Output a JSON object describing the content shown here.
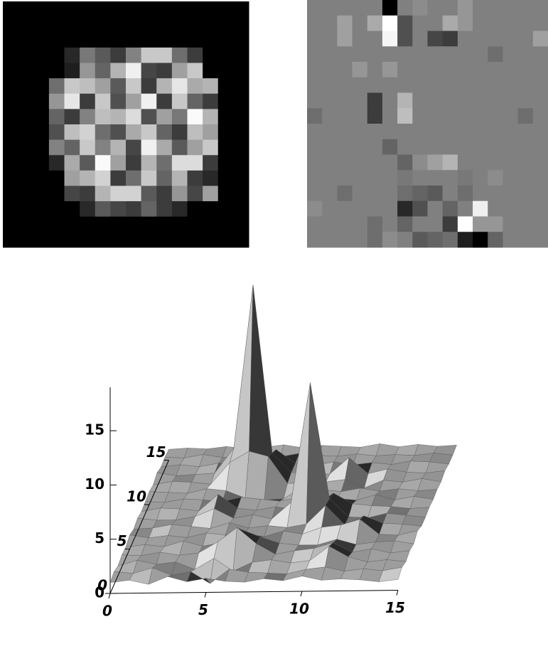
{
  "chart_data": [
    {
      "type": "heatmap",
      "colormap": "gray",
      "vlim": [
        0,
        255
      ],
      "values": [
        [
          0,
          0,
          0,
          0,
          0,
          0,
          0,
          0,
          0,
          0,
          0,
          0,
          0,
          0,
          0,
          0
        ],
        [
          0,
          0,
          0,
          0,
          0,
          0,
          0,
          0,
          0,
          0,
          0,
          0,
          0,
          0,
          0,
          0
        ],
        [
          0,
          0,
          0,
          0,
          0,
          0,
          0,
          0,
          0,
          0,
          0,
          0,
          0,
          0,
          0,
          0
        ],
        [
          0,
          0,
          0,
          0,
          40,
          120,
          90,
          60,
          130,
          200,
          200,
          110,
          60,
          0,
          0,
          0
        ],
        [
          0,
          0,
          0,
          0,
          30,
          150,
          100,
          180,
          240,
          70,
          60,
          160,
          200,
          0,
          0,
          0
        ],
        [
          0,
          0,
          0,
          110,
          200,
          190,
          160,
          90,
          200,
          60,
          180,
          230,
          170,
          180,
          0,
          0
        ],
        [
          0,
          0,
          0,
          150,
          230,
          60,
          200,
          80,
          160,
          240,
          60,
          200,
          100,
          60,
          0,
          0
        ],
        [
          0,
          0,
          0,
          100,
          60,
          130,
          190,
          180,
          220,
          80,
          160,
          120,
          250,
          180,
          0,
          0
        ],
        [
          0,
          0,
          0,
          80,
          190,
          210,
          110,
          80,
          170,
          200,
          100,
          60,
          190,
          160,
          0,
          0
        ],
        [
          0,
          0,
          0,
          130,
          100,
          200,
          130,
          180,
          70,
          240,
          170,
          90,
          160,
          200,
          0,
          0
        ],
        [
          0,
          0,
          0,
          40,
          170,
          90,
          250,
          160,
          60,
          180,
          110,
          220,
          220,
          60,
          0,
          0
        ],
        [
          0,
          0,
          0,
          0,
          160,
          180,
          210,
          60,
          110,
          200,
          100,
          180,
          60,
          40,
          0,
          0
        ],
        [
          0,
          0,
          0,
          0,
          70,
          60,
          180,
          210,
          210,
          90,
          60,
          150,
          70,
          160,
          0,
          0
        ],
        [
          0,
          0,
          0,
          0,
          0,
          40,
          90,
          70,
          60,
          100,
          60,
          40,
          0,
          0,
          0,
          0
        ],
        [
          0,
          0,
          0,
          0,
          0,
          0,
          0,
          0,
          0,
          0,
          0,
          0,
          0,
          0,
          0,
          0
        ],
        [
          0,
          0,
          0,
          0,
          0,
          0,
          0,
          0,
          0,
          0,
          0,
          0,
          0,
          0,
          0,
          0
        ]
      ]
    },
    {
      "type": "heatmap",
      "colormap": "gray",
      "vlim": [
        0,
        255
      ],
      "values": [
        [
          128,
          128,
          128,
          128,
          128,
          0,
          128,
          140,
          128,
          128,
          150,
          128,
          128,
          128,
          128,
          128
        ],
        [
          128,
          128,
          160,
          128,
          170,
          255,
          80,
          128,
          128,
          170,
          150,
          128,
          128,
          128,
          128,
          128
        ],
        [
          128,
          128,
          160,
          128,
          128,
          245,
          80,
          128,
          70,
          60,
          128,
          128,
          128,
          128,
          128,
          160
        ],
        [
          128,
          128,
          128,
          128,
          128,
          128,
          128,
          128,
          128,
          128,
          128,
          128,
          110,
          128,
          128,
          128
        ],
        [
          128,
          128,
          128,
          150,
          128,
          150,
          128,
          128,
          128,
          128,
          128,
          128,
          128,
          128,
          128,
          128
        ],
        [
          128,
          128,
          128,
          128,
          128,
          128,
          128,
          128,
          128,
          128,
          128,
          128,
          128,
          128,
          128,
          128
        ],
        [
          128,
          128,
          128,
          128,
          60,
          128,
          180,
          128,
          128,
          128,
          128,
          128,
          128,
          128,
          128,
          128
        ],
        [
          110,
          128,
          128,
          128,
          60,
          128,
          190,
          128,
          128,
          128,
          128,
          128,
          128,
          128,
          110,
          128
        ],
        [
          128,
          128,
          128,
          128,
          128,
          128,
          128,
          128,
          128,
          128,
          128,
          128,
          128,
          128,
          128,
          128
        ],
        [
          128,
          128,
          128,
          128,
          128,
          100,
          128,
          128,
          128,
          128,
          128,
          128,
          128,
          128,
          128,
          128
        ],
        [
          128,
          128,
          128,
          128,
          128,
          128,
          100,
          140,
          160,
          180,
          128,
          128,
          128,
          128,
          128,
          128
        ],
        [
          128,
          128,
          128,
          128,
          128,
          128,
          120,
          128,
          128,
          128,
          120,
          128,
          140,
          128,
          128,
          128
        ],
        [
          128,
          128,
          110,
          128,
          128,
          128,
          110,
          100,
          90,
          128,
          110,
          128,
          128,
          128,
          128,
          128
        ],
        [
          140,
          128,
          128,
          128,
          128,
          128,
          40,
          80,
          128,
          100,
          128,
          240,
          128,
          128,
          128,
          128
        ],
        [
          128,
          128,
          128,
          128,
          110,
          128,
          100,
          128,
          128,
          60,
          255,
          150,
          150,
          128,
          128,
          128
        ],
        [
          128,
          128,
          128,
          128,
          110,
          140,
          128,
          90,
          100,
          110,
          30,
          0,
          100,
          128,
          128,
          128
        ]
      ]
    },
    {
      "type": "surface",
      "xlim": [
        0,
        15
      ],
      "ylim": [
        0,
        15
      ],
      "zlim": [
        0,
        19
      ],
      "xticks": [
        0,
        5,
        10,
        15
      ],
      "yticks": [
        0,
        5,
        10,
        15
      ],
      "zticks": [
        0,
        5,
        10,
        15
      ],
      "z": [
        [
          1,
          1.2,
          0.8,
          1.5,
          1,
          1.3,
          1,
          0.9,
          1.2,
          1,
          1.4,
          1,
          1.1,
          1,
          0.8,
          1
        ],
        [
          1.2,
          1,
          1.5,
          0.8,
          1.1,
          0,
          1.3,
          1,
          0.9,
          0.8,
          1.2,
          1.4,
          1,
          1.2,
          1,
          1.3
        ],
        [
          0.9,
          1.4,
          1,
          1.2,
          0.5,
          1.5,
          0.3,
          1.1,
          1.3,
          1,
          1.2,
          2.5,
          1.5,
          1,
          1.2,
          1
        ],
        [
          1.1,
          1,
          1.3,
          1,
          1.2,
          2.2,
          3.5,
          2,
          1,
          1.3,
          1.5,
          2,
          1.1,
          1.4,
          1,
          1.2
        ],
        [
          1,
          1.2,
          1,
          1.5,
          1,
          1.3,
          2.5,
          1.8,
          1.2,
          1,
          1,
          1.5,
          1,
          1.2,
          1.3,
          1
        ],
        [
          1.3,
          1,
          1.2,
          1,
          1.4,
          1.2,
          1.3,
          1,
          1.5,
          1.2,
          1.8,
          2,
          2.5,
          1.1,
          1,
          1.4
        ],
        [
          1,
          1.1,
          1.4,
          1.2,
          1,
          1.5,
          1,
          1.2,
          1,
          1.3,
          3,
          1.2,
          2,
          1.3,
          1.2,
          1
        ],
        [
          1.2,
          1,
          1,
          1.3,
          2,
          1.1,
          1.4,
          1,
          2.5,
          13.5,
          2.8,
          1.1,
          1,
          1.4,
          1.2,
          1
        ],
        [
          1,
          1.3,
          1.2,
          1,
          2.5,
          1.2,
          1,
          1.3,
          1,
          1.2,
          2.5,
          1.5,
          1.3,
          1.2,
          1,
          1.1
        ],
        [
          1.1,
          1,
          1.3,
          1.2,
          1,
          1.4,
          1.2,
          1,
          1.3,
          1,
          1.2,
          1,
          1.5,
          1,
          1.3,
          1
        ],
        [
          1.2,
          1.1,
          1,
          1.4,
          1.2,
          0.5,
          0.3,
          0.4,
          1.5,
          1.2,
          1,
          1.3,
          1,
          1.2,
          1,
          1.1
        ],
        [
          1,
          1.3,
          1.2,
          1,
          3,
          4,
          3.5,
          1,
          1,
          1.1,
          1.3,
          0.5,
          1.2,
          1,
          1.3,
          1
        ],
        [
          1.3,
          1,
          1.1,
          1.2,
          3.5,
          18.5,
          3,
          1.2,
          1,
          1,
          2.5,
          1,
          1.4,
          1.1,
          1,
          1.2
        ],
        [
          1,
          1.2,
          1,
          1.3,
          1.2,
          1,
          2.5,
          1.2,
          1,
          1.3,
          1,
          1.2,
          1,
          1.3,
          1.2,
          1
        ],
        [
          1.1,
          1,
          1.3,
          1,
          1.1,
          1.2,
          1,
          1.3,
          1.1,
          1,
          1.2,
          1,
          1.1,
          1,
          1.2,
          1
        ],
        [
          1,
          1.1,
          1,
          1.2,
          1,
          1.1,
          1.3,
          1,
          1.2,
          1.1,
          1,
          1.3,
          1,
          1.2,
          1,
          1.1
        ]
      ]
    }
  ]
}
